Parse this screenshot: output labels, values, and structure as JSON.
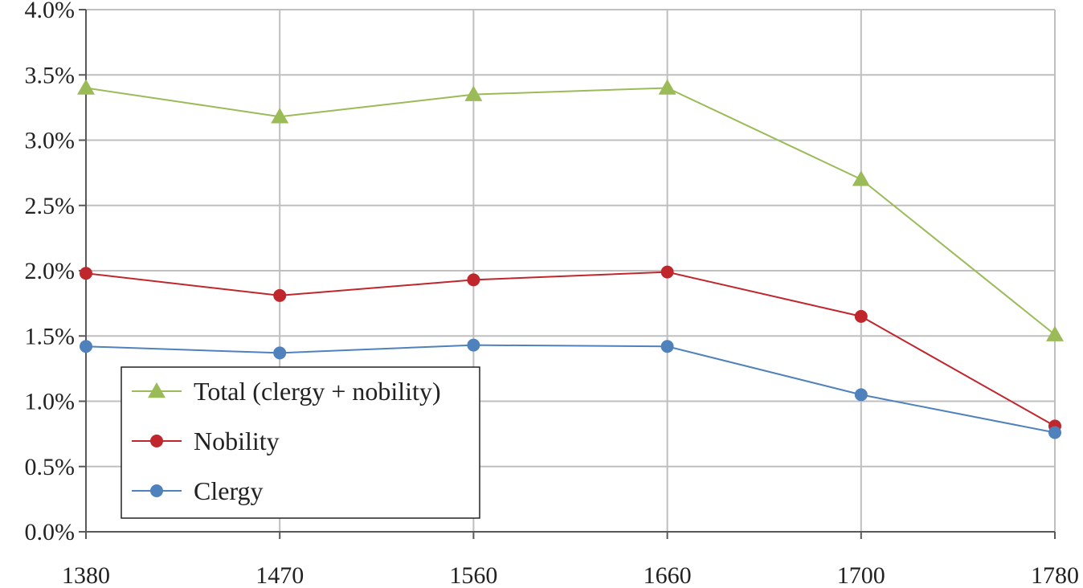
{
  "chart_data": {
    "type": "line",
    "categories": [
      "1380",
      "1470",
      "1560",
      "1660",
      "1700",
      "1780"
    ],
    "series": [
      {
        "name": "Total (clergy + nobility)",
        "values": [
          3.4,
          3.18,
          3.35,
          3.4,
          2.7,
          1.51
        ],
        "color": "#9BBB59",
        "marker": "triangle"
      },
      {
        "name": "Nobility",
        "values": [
          1.98,
          1.81,
          1.93,
          1.99,
          1.65,
          0.81
        ],
        "color": "#C0272D",
        "marker": "circle"
      },
      {
        "name": "Clergy",
        "values": [
          1.42,
          1.37,
          1.43,
          1.42,
          1.05,
          0.76
        ],
        "color": "#4F81BD",
        "marker": "circle"
      }
    ],
    "yticks": [
      "0.0%",
      "0.5%",
      "1.0%",
      "1.5%",
      "2.0%",
      "2.5%",
      "3.0%",
      "3.5%",
      "4.0%"
    ],
    "ylim": [
      0,
      4
    ],
    "grid": true,
    "legend_position": "lower-left",
    "title": "",
    "xlabel": "",
    "ylabel": ""
  }
}
